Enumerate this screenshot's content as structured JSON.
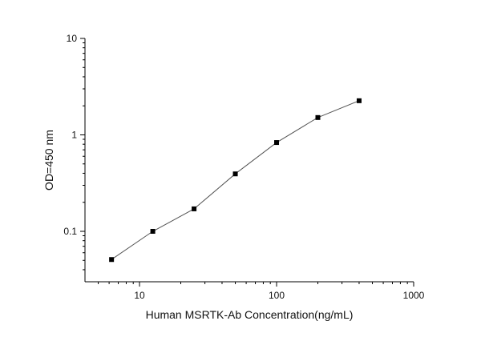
{
  "chart_data": {
    "type": "line",
    "x_scale": "log",
    "y_scale": "log",
    "xlim": [
      4,
      1000
    ],
    "ylim": [
      0.03,
      10
    ],
    "x_ticks": [
      10,
      100,
      1000
    ],
    "x_tick_labels": [
      "10",
      "100",
      "1000"
    ],
    "y_ticks": [
      0.1,
      1,
      10
    ],
    "y_tick_labels": [
      "0.1",
      "1",
      "10"
    ],
    "xlabel": "Human MSRTK-Ab Concentration(ng/mL)",
    "ylabel": "OD=450 nm",
    "grid": false,
    "legend": "none",
    "series": [
      {
        "x": [
          6.25,
          12.5,
          25,
          50,
          100,
          200,
          400
        ],
        "y": [
          0.051,
          0.1,
          0.171,
          0.394,
          0.833,
          1.513,
          2.26
        ],
        "marker": "square",
        "color": "#000000",
        "line_color": "#555555"
      }
    ]
  }
}
